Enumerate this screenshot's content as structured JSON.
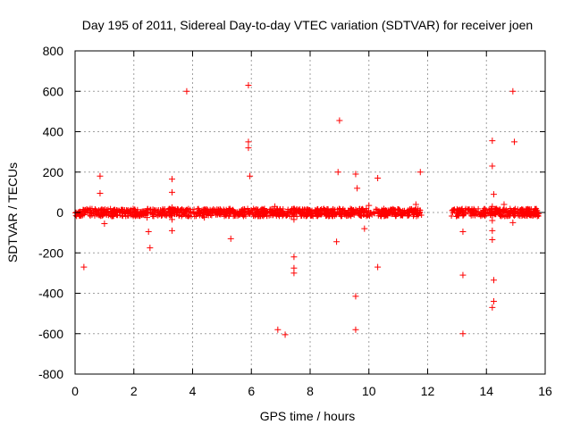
{
  "chart_data": {
    "type": "scatter",
    "title": "Day 195 of 2011, Sidereal Day-to-day VTEC variation (SDTVAR) for receiver joen",
    "xlabel": "GPS time / hours",
    "ylabel": "SDTVAR / TECUs",
    "xlim": [
      0,
      16
    ],
    "ylim": [
      -800,
      800
    ],
    "x_ticks": [
      0,
      2,
      4,
      6,
      8,
      10,
      12,
      14,
      16
    ],
    "y_ticks": [
      -800,
      -600,
      -400,
      -200,
      0,
      200,
      400,
      600,
      800
    ],
    "x_tick_labels": [
      "0",
      "2",
      "4",
      "6",
      "8",
      "10",
      "12",
      "14",
      "16"
    ],
    "y_tick_labels": [
      "-800",
      "-600",
      "-400",
      "-200",
      "0",
      "200",
      "400",
      "600",
      "800"
    ],
    "grid": true,
    "marker": "+",
    "color": "#ff0000",
    "dense_band": {
      "description": "dense cluster of points near zero",
      "segments": [
        {
          "x_start": 0.0,
          "x_end": 11.8,
          "y_min": -12,
          "y_max": 12
        },
        {
          "x_start": 12.8,
          "x_end": 15.8,
          "y_min": -12,
          "y_max": 12
        }
      ]
    },
    "series": [
      {
        "name": "SDTVAR",
        "points": [
          {
            "x": 0.3,
            "y": -270
          },
          {
            "x": 0.85,
            "y": 180
          },
          {
            "x": 0.85,
            "y": 95
          },
          {
            "x": 1.0,
            "y": -55
          },
          {
            "x": 2.5,
            "y": -95
          },
          {
            "x": 2.55,
            "y": -175
          },
          {
            "x": 2.45,
            "y": -25
          },
          {
            "x": 3.3,
            "y": 165
          },
          {
            "x": 3.3,
            "y": 100
          },
          {
            "x": 3.3,
            "y": -90
          },
          {
            "x": 3.3,
            "y": -35
          },
          {
            "x": 3.3,
            "y": 25
          },
          {
            "x": 3.8,
            "y": 600
          },
          {
            "x": 4.4,
            "y": -25
          },
          {
            "x": 5.3,
            "y": -130
          },
          {
            "x": 5.9,
            "y": 630
          },
          {
            "x": 5.9,
            "y": 350
          },
          {
            "x": 5.9,
            "y": 320
          },
          {
            "x": 5.95,
            "y": 180
          },
          {
            "x": 6.8,
            "y": 30
          },
          {
            "x": 6.9,
            "y": -580
          },
          {
            "x": 7.15,
            "y": -605
          },
          {
            "x": 7.45,
            "y": -220
          },
          {
            "x": 7.45,
            "y": -275
          },
          {
            "x": 7.45,
            "y": -300
          },
          {
            "x": 7.45,
            "y": -35
          },
          {
            "x": 8.9,
            "y": -145
          },
          {
            "x": 8.95,
            "y": 200
          },
          {
            "x": 9.0,
            "y": 455
          },
          {
            "x": 9.55,
            "y": 190
          },
          {
            "x": 9.6,
            "y": 120
          },
          {
            "x": 9.55,
            "y": -415
          },
          {
            "x": 9.55,
            "y": -580
          },
          {
            "x": 9.85,
            "y": -80
          },
          {
            "x": 10.0,
            "y": 35
          },
          {
            "x": 10.3,
            "y": 170
          },
          {
            "x": 10.3,
            "y": -270
          },
          {
            "x": 11.75,
            "y": 200
          },
          {
            "x": 11.6,
            "y": 40
          },
          {
            "x": 13.2,
            "y": -95
          },
          {
            "x": 13.2,
            "y": -310
          },
          {
            "x": 13.2,
            "y": -600
          },
          {
            "x": 14.2,
            "y": 355
          },
          {
            "x": 14.2,
            "y": 230
          },
          {
            "x": 14.25,
            "y": 90
          },
          {
            "x": 14.2,
            "y": 30
          },
          {
            "x": 14.2,
            "y": -40
          },
          {
            "x": 14.2,
            "y": -90
          },
          {
            "x": 14.2,
            "y": -135
          },
          {
            "x": 14.25,
            "y": -335
          },
          {
            "x": 14.25,
            "y": -440
          },
          {
            "x": 14.2,
            "y": -470
          },
          {
            "x": 14.6,
            "y": 40
          },
          {
            "x": 14.9,
            "y": 600
          },
          {
            "x": 14.95,
            "y": 350
          },
          {
            "x": 14.9,
            "y": -50
          }
        ]
      }
    ]
  }
}
